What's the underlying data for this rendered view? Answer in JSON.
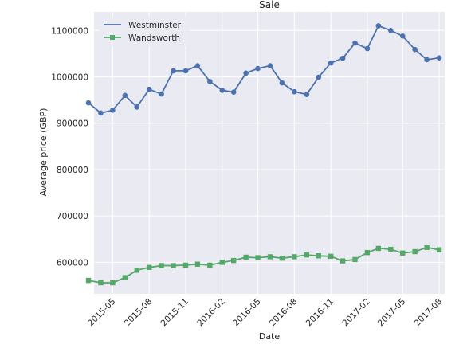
{
  "chart_data": {
    "type": "line",
    "title": "Sale",
    "xlabel": "Date",
    "ylabel": "Average price (GBP)",
    "grid": true,
    "legend_position": "top-left",
    "x_range": [
      "2015-03-15",
      "2017-08-15"
    ],
    "ylim": [
      532000,
      1140000
    ],
    "x_ticks": [
      "2015-05",
      "2015-08",
      "2015-11",
      "2016-02",
      "2016-05",
      "2016-08",
      "2016-11",
      "2017-02",
      "2017-05",
      "2017-08"
    ],
    "y_ticks": [
      600000,
      700000,
      800000,
      900000,
      1000000,
      1100000
    ],
    "y_tick_labels": [
      "600000",
      "700000",
      "800000",
      "900000",
      "1000000",
      "1100000"
    ],
    "x": [
      "2015-03",
      "2015-04",
      "2015-05",
      "2015-06",
      "2015-07",
      "2015-08",
      "2015-09",
      "2015-10",
      "2015-11",
      "2015-12",
      "2016-01",
      "2016-02",
      "2016-03",
      "2016-04",
      "2016-05",
      "2016-06",
      "2016-07",
      "2016-08",
      "2016-09",
      "2016-10",
      "2016-11",
      "2016-12",
      "2017-01",
      "2017-02",
      "2017-03",
      "2017-04",
      "2017-05",
      "2017-06",
      "2017-07",
      "2017-08"
    ],
    "series": [
      {
        "name": "Westminster",
        "color": "#4c72b0",
        "marker": "circle",
        "values": [
          944000,
          922000,
          928000,
          960000,
          935000,
          973000,
          963000,
          1013000,
          1013000,
          1024000,
          990000,
          971000,
          967000,
          1008000,
          1018000,
          1024000,
          987000,
          968000,
          962000,
          999000,
          1030000,
          1040000,
          1073000,
          1061000,
          1110000,
          1100000,
          1088000,
          1059000,
          1037000,
          1041000
        ]
      },
      {
        "name": "Wandsworth",
        "color": "#55a868",
        "marker": "square",
        "values": [
          561000,
          556000,
          556000,
          567000,
          583000,
          589000,
          593000,
          593000,
          594000,
          596000,
          594000,
          600000,
          604000,
          611000,
          610000,
          612000,
          609000,
          612000,
          616000,
          614000,
          613000,
          603000,
          606000,
          621000,
          630000,
          628000,
          620000,
          623000,
          632000,
          627000
        ]
      }
    ]
  }
}
